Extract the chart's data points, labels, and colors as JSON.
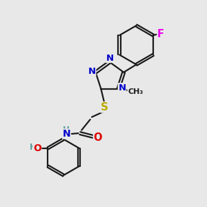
{
  "bg_color": "#e8e8e8",
  "bond_color": "#1a1a1a",
  "bond_width": 1.6,
  "atom_colors": {
    "N": "#0000cc",
    "O": "#dd0000",
    "S": "#bbaa00",
    "F": "#ee00ee",
    "H": "#559999",
    "C": "#1a1a1a"
  },
  "font_size": 9.5
}
